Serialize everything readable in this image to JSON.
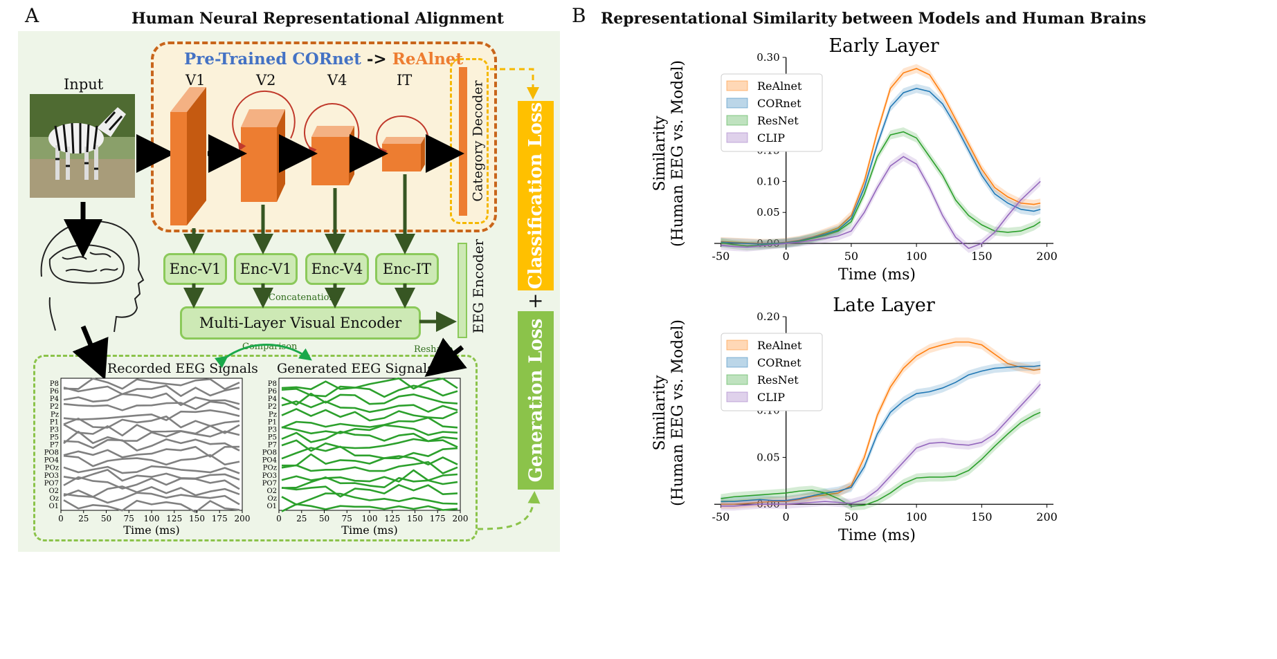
{
  "panel_a": {
    "letter": "A",
    "title": "Human Neural Representational Alignment",
    "pretrained": "Pre-Trained CORnet",
    "arrow_text": "->",
    "realnet": "ReAlnet",
    "input_label": "Input",
    "stages": [
      "V1",
      "V2",
      "V4",
      "IT"
    ],
    "category_decoder": "Category Decoder",
    "encoders": [
      "Enc-V1",
      "Enc-V1",
      "Enc-V4",
      "Enc-IT"
    ],
    "concatenation": "Concatenation",
    "multi_layer_encoder": "Multi-Layer Visual Encoder",
    "eeg_encoder": "EEG Encoder",
    "reshape": "Reshape",
    "comparison": "Comparison",
    "recorded_title": "Recorded EEG Signals",
    "generated_title": "Generated EEG Signals",
    "channels": [
      "P8",
      "P6",
      "P4",
      "P2",
      "Pz",
      "P1",
      "P3",
      "P5",
      "P7",
      "PO8",
      "PO4",
      "POz",
      "PO3",
      "PO7",
      "O2",
      "Oz",
      "O1"
    ],
    "eeg_xticks": [
      "0",
      "25",
      "50",
      "75",
      "100",
      "125",
      "150",
      "175",
      "200"
    ],
    "eeg_xlabel": "Time (ms)",
    "classification_loss": "Classification Loss",
    "plus": "+",
    "generation_loss": "Generation Loss",
    "colors": {
      "background": "#eef5e8",
      "cornet_blue": "#4472c4",
      "realnet_orange": "#ed7d31",
      "loss_orange": "#ffc000",
      "loss_green": "#8bc34a",
      "eeg_gray": "#808080",
      "eeg_green": "#2ca02c"
    }
  },
  "panel_b": {
    "letter": "B",
    "title": "Representational Similarity between Models and Human Brains"
  },
  "chart_data": [
    {
      "type": "line",
      "title": "Early Layer",
      "xlabel": "Time (ms)",
      "ylabel_line1": "Similarity",
      "ylabel_line2": "(Human EEG vs. Model)",
      "xlim": [
        -55,
        205
      ],
      "ylim": [
        -0.01,
        0.3
      ],
      "xticks": [
        -50,
        0,
        50,
        100,
        150,
        200
      ],
      "yticks": [
        "0.00",
        "0.05",
        "0.10",
        "0.15",
        "0.20",
        "0.25",
        "0.30"
      ],
      "legend_position": "top-left",
      "x": [
        -50,
        -40,
        -30,
        -20,
        -10,
        0,
        10,
        20,
        30,
        40,
        50,
        60,
        70,
        80,
        90,
        100,
        110,
        120,
        130,
        140,
        150,
        160,
        170,
        180,
        190,
        195
      ],
      "series": [
        {
          "name": "ReAlnet",
          "color": "#ff7f0e",
          "values": [
            0.003,
            0.002,
            0.001,
            0.0,
            0.0,
            0.002,
            0.005,
            0.01,
            0.017,
            0.025,
            0.045,
            0.1,
            0.18,
            0.25,
            0.275,
            0.282,
            0.272,
            0.24,
            0.2,
            0.16,
            0.12,
            0.09,
            0.075,
            0.065,
            0.063,
            0.065
          ]
        },
        {
          "name": "CORnet",
          "color": "#1f77b4",
          "values": [
            0.002,
            0.001,
            0.0,
            -0.001,
            0.0,
            0.001,
            0.004,
            0.009,
            0.015,
            0.022,
            0.04,
            0.09,
            0.16,
            0.22,
            0.243,
            0.25,
            0.245,
            0.225,
            0.19,
            0.15,
            0.11,
            0.08,
            0.065,
            0.055,
            0.052,
            0.055
          ]
        },
        {
          "name": "ResNet",
          "color": "#2ca02c",
          "values": [
            0.001,
            -0.002,
            -0.004,
            -0.003,
            -0.001,
            0.0,
            0.003,
            0.008,
            0.013,
            0.02,
            0.035,
            0.08,
            0.14,
            0.175,
            0.18,
            0.17,
            0.14,
            0.11,
            0.07,
            0.045,
            0.03,
            0.02,
            0.018,
            0.02,
            0.028,
            0.035
          ]
        },
        {
          "name": "CLIP",
          "color": "#9467bd",
          "values": [
            -0.003,
            -0.005,
            -0.006,
            -0.004,
            -0.002,
            0.0,
            0.002,
            0.005,
            0.008,
            0.012,
            0.02,
            0.05,
            0.09,
            0.125,
            0.14,
            0.128,
            0.09,
            0.045,
            0.01,
            -0.008,
            0.0,
            0.018,
            0.045,
            0.07,
            0.09,
            0.1
          ]
        }
      ]
    },
    {
      "type": "line",
      "title": "Late Layer",
      "xlabel": "Time (ms)",
      "ylabel_line1": "Similarity",
      "ylabel_line2": "(Human EEG vs. Model)",
      "xlim": [
        -55,
        205
      ],
      "ylim": [
        -0.005,
        0.2
      ],
      "xticks": [
        -50,
        0,
        50,
        100,
        150,
        200
      ],
      "yticks": [
        "0.00",
        "0.05",
        "0.10",
        "0.15",
        "0.20"
      ],
      "legend_position": "top-left",
      "x": [
        -50,
        -40,
        -30,
        -20,
        -10,
        0,
        10,
        20,
        30,
        40,
        50,
        60,
        70,
        80,
        90,
        100,
        110,
        120,
        130,
        140,
        150,
        160,
        170,
        180,
        190,
        195
      ],
      "series": [
        {
          "name": "ReAlnet",
          "color": "#ff7f0e",
          "values": [
            0.0,
            0.0,
            0.001,
            0.002,
            0.003,
            0.003,
            0.005,
            0.008,
            0.01,
            0.012,
            0.02,
            0.05,
            0.095,
            0.125,
            0.145,
            0.158,
            0.166,
            0.17,
            0.173,
            0.173,
            0.17,
            0.16,
            0.15,
            0.146,
            0.143,
            0.144
          ]
        },
        {
          "name": "CORnet",
          "color": "#1f77b4",
          "values": [
            0.003,
            0.003,
            0.004,
            0.005,
            0.004,
            0.004,
            0.006,
            0.009,
            0.012,
            0.014,
            0.018,
            0.04,
            0.075,
            0.098,
            0.11,
            0.118,
            0.12,
            0.124,
            0.13,
            0.138,
            0.142,
            0.145,
            0.146,
            0.147,
            0.147,
            0.148
          ]
        },
        {
          "name": "ResNet",
          "color": "#2ca02c",
          "values": [
            0.006,
            0.008,
            0.009,
            0.01,
            0.011,
            0.012,
            0.014,
            0.015,
            0.012,
            0.006,
            -0.002,
            -0.001,
            0.004,
            0.012,
            0.022,
            0.028,
            0.029,
            0.029,
            0.03,
            0.036,
            0.048,
            0.062,
            0.075,
            0.087,
            0.095,
            0.098
          ]
        },
        {
          "name": "CLIP",
          "color": "#9467bd",
          "values": [
            -0.002,
            -0.002,
            -0.001,
            0.0,
            0.0,
            0.0,
            0.001,
            0.002,
            0.003,
            0.002,
            0.001,
            0.005,
            0.015,
            0.03,
            0.045,
            0.06,
            0.065,
            0.066,
            0.064,
            0.063,
            0.066,
            0.075,
            0.09,
            0.105,
            0.12,
            0.128
          ]
        }
      ]
    },
    {
      "type": "line",
      "title": "Recorded EEG Signals",
      "xlabel": "Time (ms)",
      "xticks": [
        0,
        25,
        50,
        75,
        100,
        125,
        150,
        175,
        200
      ],
      "color": "#808080"
    },
    {
      "type": "line",
      "title": "Generated EEG Signals",
      "xlabel": "Time (ms)",
      "xticks": [
        0,
        25,
        50,
        75,
        100,
        125,
        150,
        175,
        200
      ],
      "color": "#2ca02c"
    }
  ]
}
